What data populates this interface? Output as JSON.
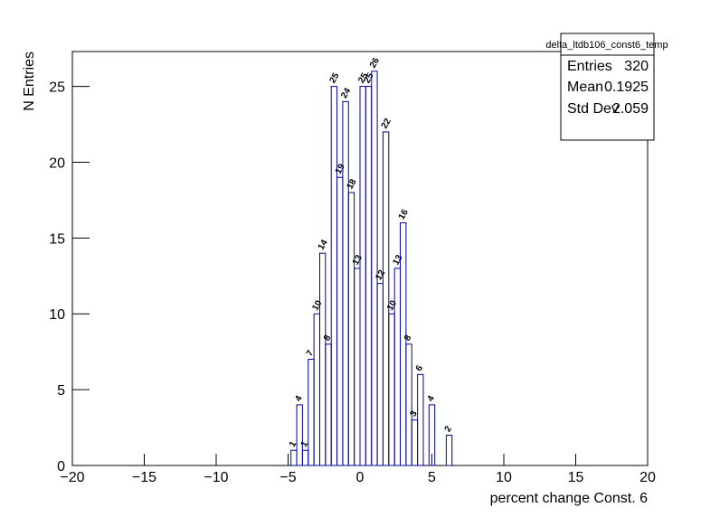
{
  "chart_data": {
    "type": "histogram",
    "xlabel": "percent change Const. 6",
    "ylabel": "N Entries",
    "bins": [
      -4.8,
      -4.4,
      -4.0,
      -3.6,
      -3.2,
      -2.8,
      -2.4,
      -2.0,
      -1.6,
      -1.2,
      -0.8,
      -0.4,
      0,
      0.4,
      0.8,
      1.2,
      1.6,
      2.0,
      2.4,
      2.8,
      3.2,
      3.6,
      4.0,
      4.4,
      4.8,
      5.2,
      5.6,
      6.0,
      6.4
    ],
    "values": [
      1,
      4,
      1,
      7,
      10,
      14,
      8,
      25,
      19,
      24,
      18,
      13,
      25,
      25,
      26,
      12,
      22,
      10,
      13,
      16,
      8,
      3,
      6,
      0,
      4,
      0,
      0,
      2
    ],
    "color": "#000099",
    "xlim": [
      -20,
      20
    ],
    "xticks": [
      {
        "value": -20,
        "label": "−20"
      },
      {
        "value": -15,
        "label": "−15"
      },
      {
        "value": -10,
        "label": "−10"
      },
      {
        "value": -5,
        "label": "−5"
      },
      0,
      5,
      10,
      15,
      20
    ],
    "ylim": [
      0,
      27.3
    ],
    "yticks": [
      0,
      5,
      10,
      15,
      20,
      25
    ],
    "stats": {
      "title": "delta_ltdb106_const6_temp",
      "rows": [
        [
          "Entries",
          320
        ],
        [
          "Mean",
          0.1925
        ],
        [
          "Std Dev",
          2.059
        ]
      ]
    }
  }
}
